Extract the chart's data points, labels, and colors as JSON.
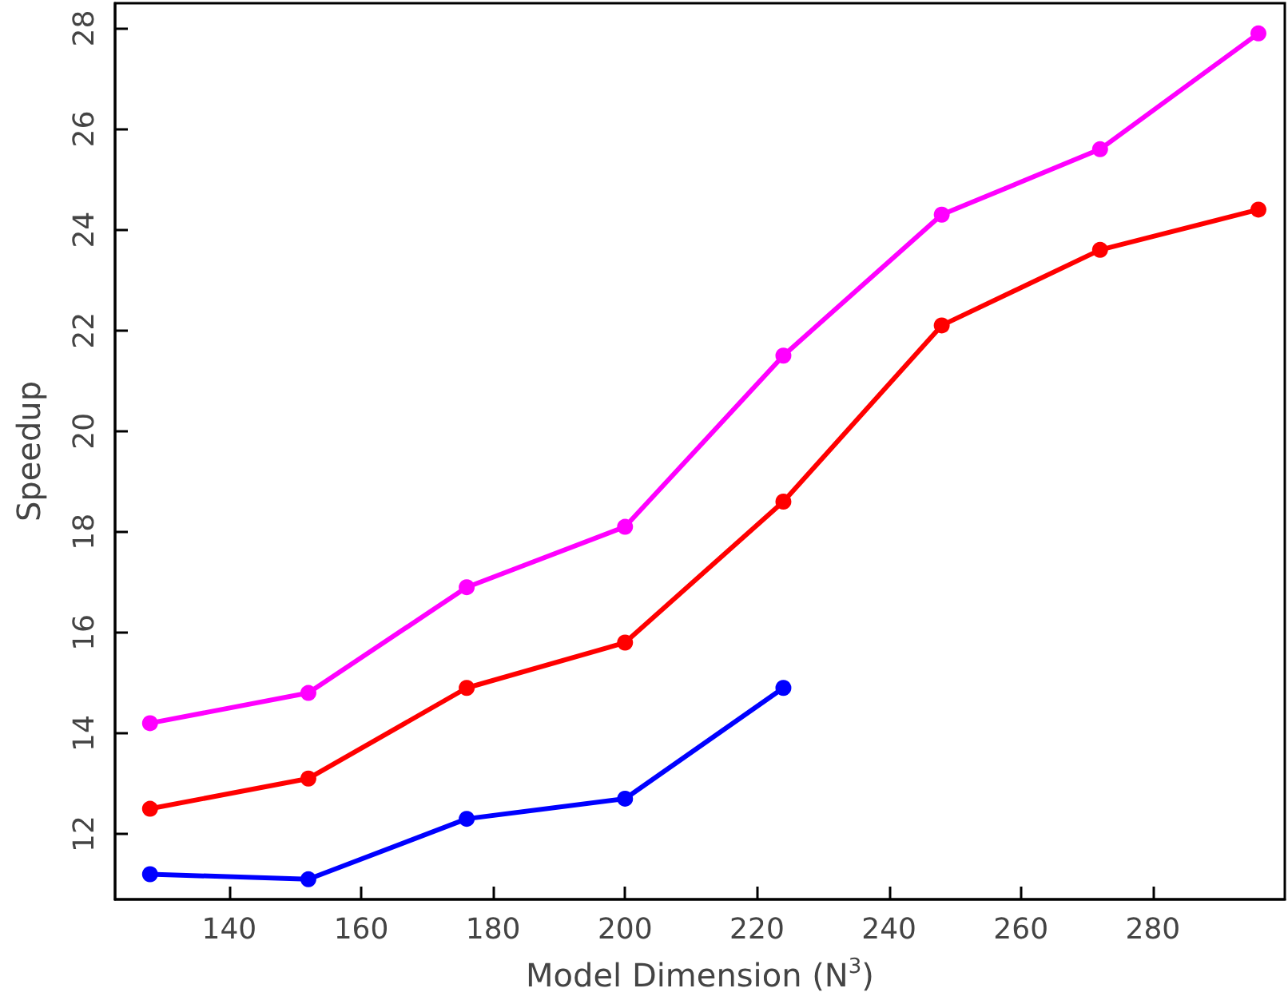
{
  "chart_data": {
    "type": "line",
    "xlabel": "Model Dimension (N$^{3}$)",
    "ylabel": "Speedup",
    "x": [
      128,
      152,
      176,
      200,
      224,
      248,
      272,
      296
    ],
    "xlim": [
      122.7,
      300
    ],
    "xticks": [
      140,
      160,
      180,
      200,
      220,
      240,
      260,
      280
    ],
    "ylim": [
      10.7,
      28.5
    ],
    "yticks": [
      12,
      14,
      16,
      18,
      20,
      22,
      24,
      26,
      28
    ],
    "grid": false,
    "marker": "circle",
    "line_style": "solid",
    "series": [
      {
        "color": "#ff00ff",
        "values": [
          14.2,
          14.8,
          16.9,
          18.1,
          21.5,
          24.3,
          25.6,
          27.9
        ]
      },
      {
        "color": "#ff0000",
        "values": [
          12.5,
          13.1,
          14.9,
          15.8,
          18.6,
          22.1,
          23.6,
          24.4
        ]
      },
      {
        "color": "#0000ff",
        "values": [
          11.2,
          11.1,
          12.3,
          12.7,
          14.9,
          null,
          null,
          null
        ]
      }
    ]
  }
}
